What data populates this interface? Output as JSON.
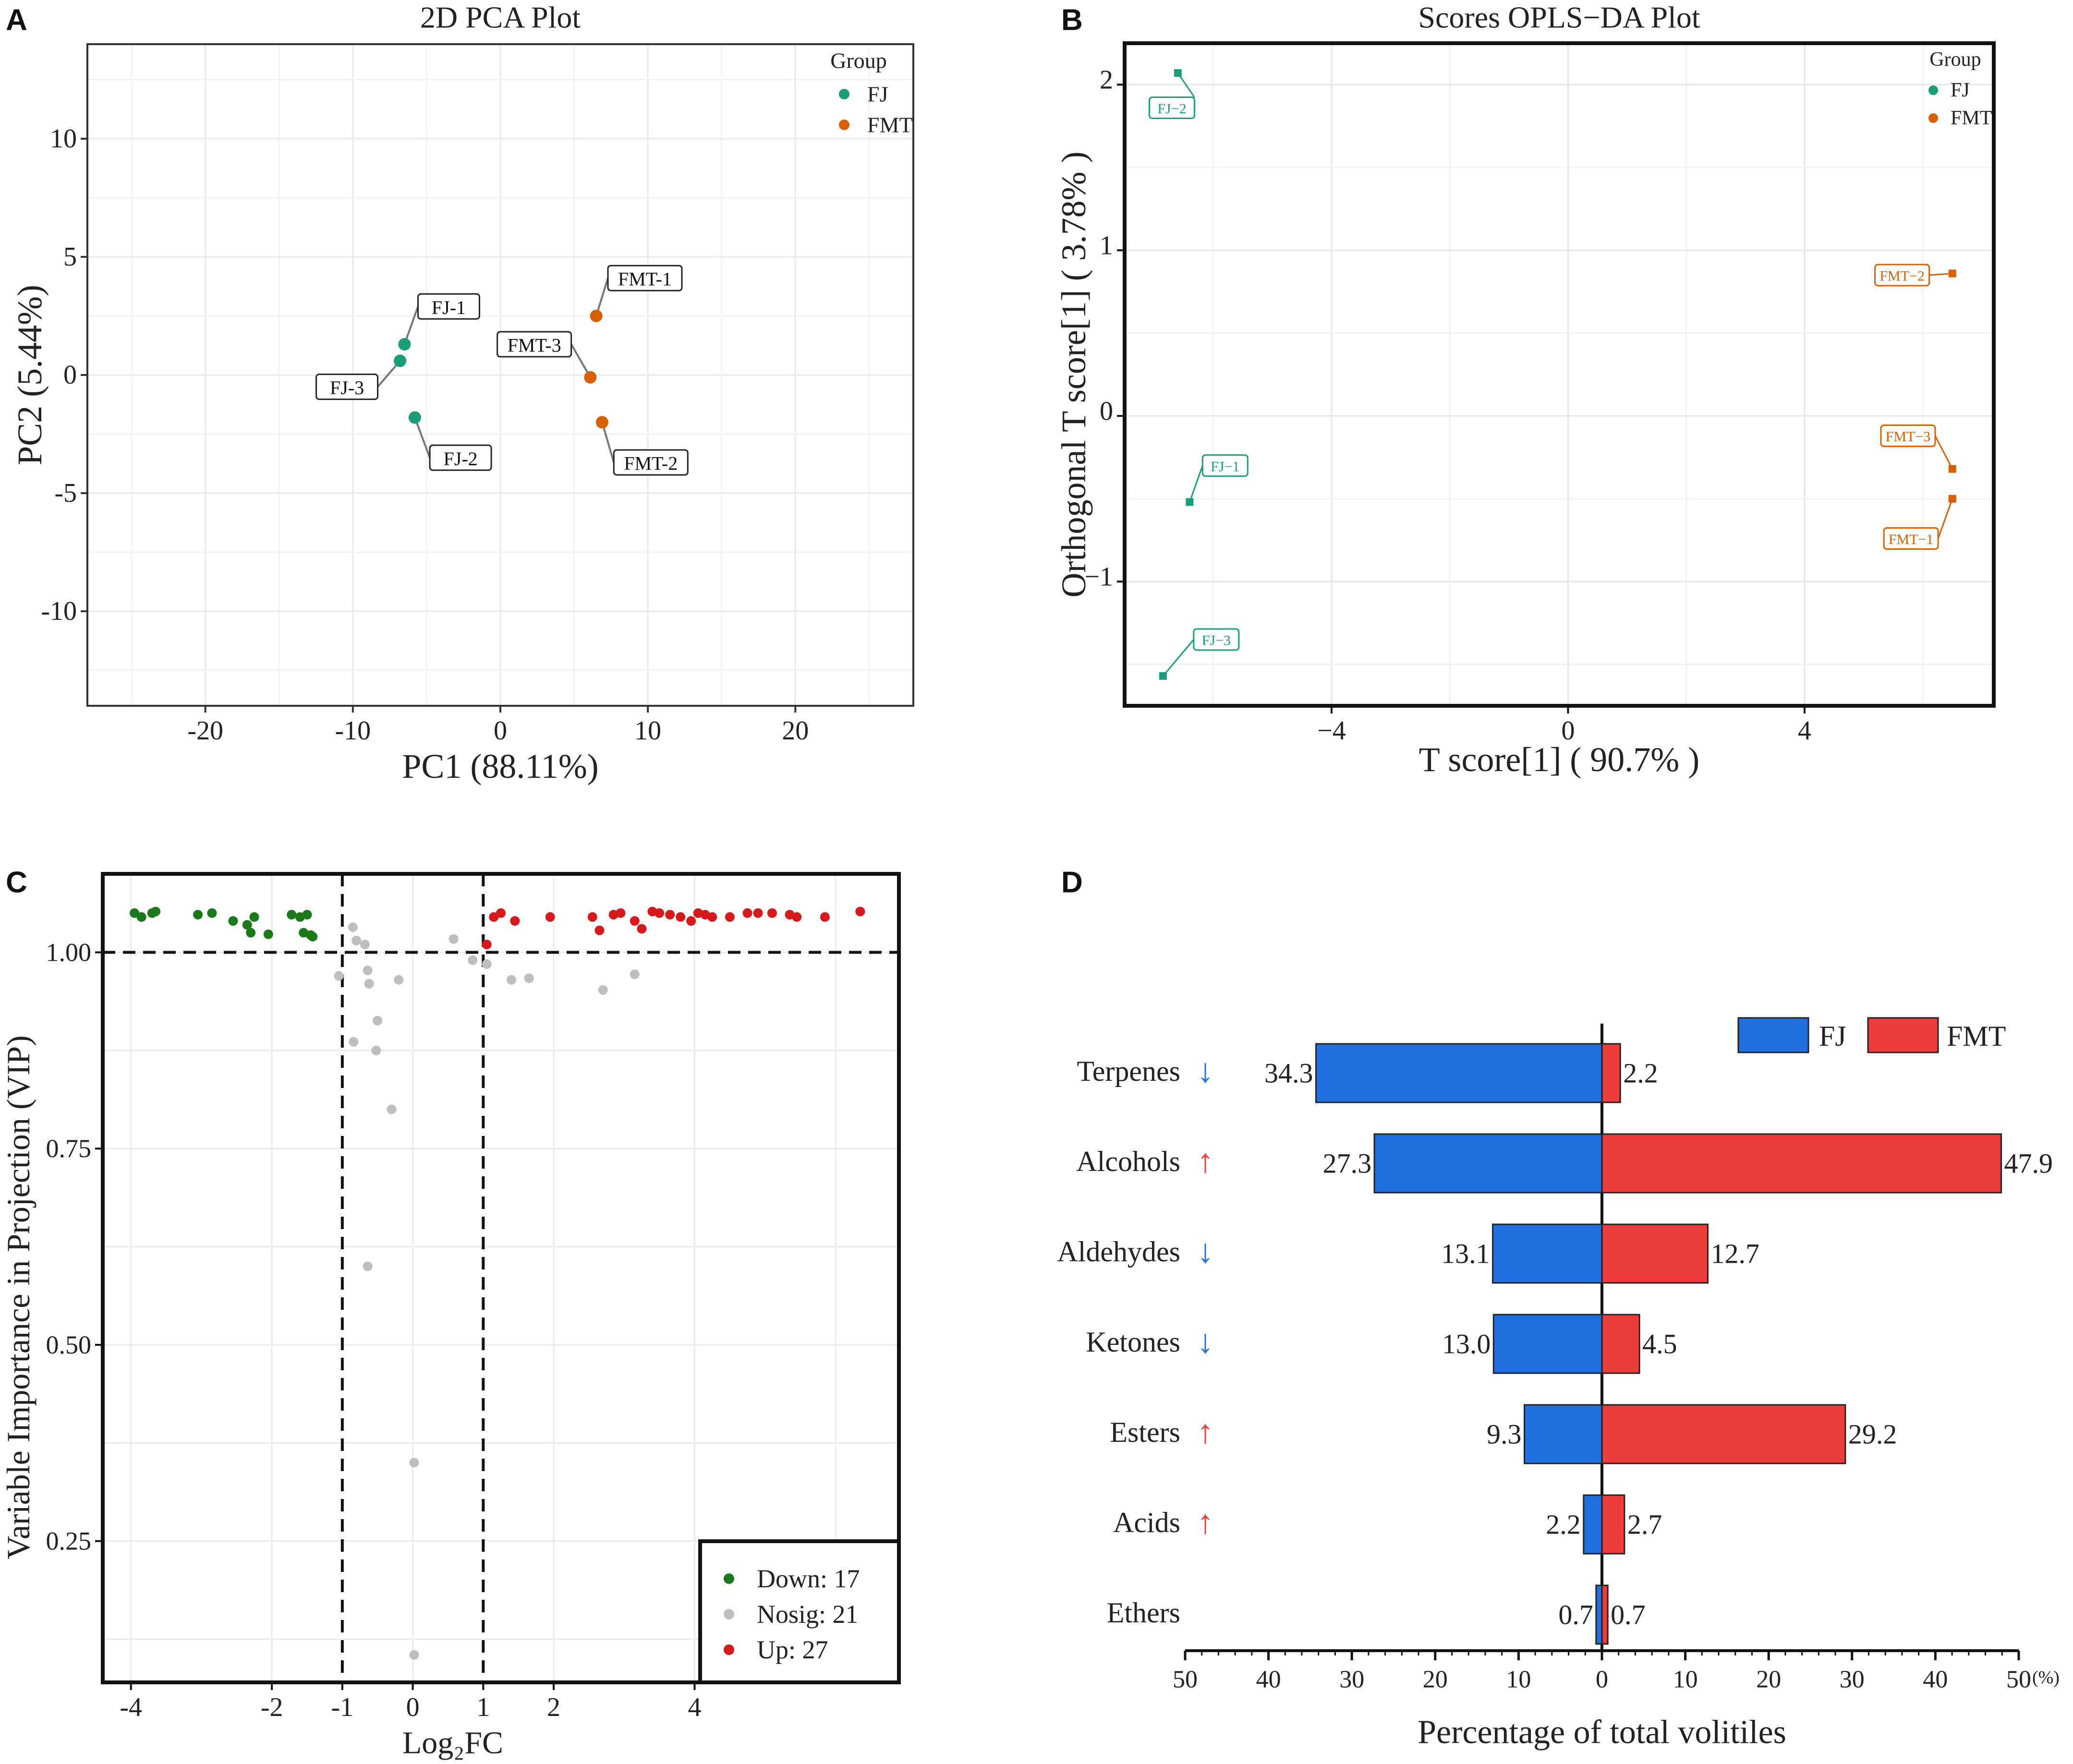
{
  "colors": {
    "fj": "#1a9e77",
    "fmt": "#d95f02",
    "down": "#1a7a1a",
    "nosig": "#bebebe",
    "up": "#d7191c",
    "bar_fj": "#1f6fe0",
    "bar_fmt": "#ee3b3b",
    "arrow_down": "#1f6fe0",
    "arrow_up": "#ee3b3b"
  },
  "chart_data": [
    {
      "id": "A",
      "panel_letter": "A",
      "type": "scatter",
      "title": "2D PCA Plot",
      "xlabel": "PC1 (88.11%)",
      "ylabel": "PC2 (5.44%)",
      "xlim": [
        -28,
        28
      ],
      "ylim": [
        -14,
        14
      ],
      "xticks": [
        -20,
        -10,
        0,
        10,
        20
      ],
      "xtick_labels": [
        "-20",
        "-10",
        "0",
        "10",
        "20"
      ],
      "yticks": [
        10,
        5,
        0,
        -5,
        -10
      ],
      "ytick_labels": [
        "10",
        "5",
        "0",
        "-5",
        "-10"
      ],
      "legend": {
        "title": "Group",
        "position": "top-right",
        "items": [
          {
            "label": "FJ",
            "group": "FJ"
          },
          {
            "label": "FMT",
            "group": "FMT"
          }
        ]
      },
      "points": [
        {
          "label": "FJ-1",
          "group": "FJ",
          "x": -6.5,
          "y": 1.3,
          "lx": -3.5,
          "ly": 2.9
        },
        {
          "label": "FJ-2",
          "group": "FJ",
          "x": -5.8,
          "y": -1.8,
          "lx": -2.7,
          "ly": -3.5
        },
        {
          "label": "FJ-3",
          "group": "FJ",
          "x": -6.8,
          "y": 0.6,
          "lx": -10.4,
          "ly": -0.5
        },
        {
          "label": "FMT-1",
          "group": "FMT",
          "x": 6.5,
          "y": 2.5,
          "lx": 9.8,
          "ly": 4.1
        },
        {
          "label": "FMT-2",
          "group": "FMT",
          "x": 6.9,
          "y": -2.0,
          "lx": 10.2,
          "ly": -3.7
        },
        {
          "label": "FMT-3",
          "group": "FMT",
          "x": 6.1,
          "y": -0.1,
          "lx": 2.3,
          "ly": 1.3
        }
      ]
    },
    {
      "id": "B",
      "panel_letter": "B",
      "type": "scatter",
      "title": "Scores OPLS−DA Plot",
      "xlabel": "T score[1] ( 90.7% )",
      "ylabel": "Orthogonal T score[1] ( 3.78% )",
      "xlim": [
        -7.5,
        7.2
      ],
      "ylim": [
        -1.75,
        2.25
      ],
      "xticks": [
        -4,
        0,
        4
      ],
      "xtick_labels": [
        "−4",
        "0",
        "4"
      ],
      "yticks": [
        2,
        1,
        0,
        -1
      ],
      "ytick_labels": [
        "2",
        "1",
        "0",
        "−1"
      ],
      "legend": {
        "title": "Group",
        "position": "top-right",
        "items": [
          {
            "label": "FJ",
            "group": "FJ"
          },
          {
            "label": "FMT",
            "group": "FMT"
          }
        ]
      },
      "points": [
        {
          "label": "FJ−1",
          "group": "FJ",
          "x": -6.4,
          "y": -0.52,
          "lx": -5.8,
          "ly": -0.3
        },
        {
          "label": "FJ−2",
          "group": "FJ",
          "x": -6.6,
          "y": 2.07,
          "lx": -6.7,
          "ly": 1.86
        },
        {
          "label": "FJ−3",
          "group": "FJ",
          "x": -6.85,
          "y": -1.57,
          "lx": -5.95,
          "ly": -1.35
        },
        {
          "label": "FMT−1",
          "group": "FMT",
          "x": 6.5,
          "y": -0.5,
          "lx": 5.8,
          "ly": -0.74
        },
        {
          "label": "FMT−2",
          "group": "FMT",
          "x": 6.5,
          "y": 0.86,
          "lx": 5.65,
          "ly": 0.85
        },
        {
          "label": "FMT−3",
          "group": "FMT",
          "x": 6.5,
          "y": -0.32,
          "lx": 5.75,
          "ly": -0.12
        }
      ]
    },
    {
      "id": "C",
      "panel_letter": "C",
      "type": "scatter",
      "title": "",
      "xlabel": "Log₂FC",
      "ylabel": "Variable Importance in Projection (VIP)",
      "xlim": [
        -4.4,
        6.9
      ],
      "ylim": [
        0.07,
        1.1
      ],
      "xticks": [
        -4,
        -2,
        -1,
        0,
        1,
        2,
        4
      ],
      "xtick_labels": [
        "-4",
        "-2",
        "-1",
        "0",
        "1",
        "2",
        "4"
      ],
      "yticks": [
        1.0,
        0.75,
        0.5,
        0.25
      ],
      "ytick_labels": [
        "1.00",
        "0.75",
        "0.50",
        "0.25"
      ],
      "threshold_lines": {
        "vip": 1.0,
        "log2fc": [
          -1,
          1
        ]
      },
      "legend": {
        "position": "bottom-right",
        "items": [
          {
            "label": "Down: 17",
            "group": "down"
          },
          {
            "label": "Nosig: 21",
            "group": "nosig"
          },
          {
            "label": "Up: 27",
            "group": "up"
          }
        ]
      },
      "series": [
        {
          "name": "Down",
          "group": "down",
          "points": [
            [
              -3.95,
              1.05
            ],
            [
              -3.85,
              1.045
            ],
            [
              -3.7,
              1.05
            ],
            [
              -3.65,
              1.052
            ],
            [
              -3.05,
              1.048
            ],
            [
              -2.85,
              1.05
            ],
            [
              -2.55,
              1.04
            ],
            [
              -2.35,
              1.035
            ],
            [
              -2.3,
              1.025
            ],
            [
              -2.25,
              1.045
            ],
            [
              -2.05,
              1.023
            ],
            [
              -1.72,
              1.048
            ],
            [
              -1.6,
              1.045
            ],
            [
              -1.55,
              1.025
            ],
            [
              -1.5,
              1.048
            ],
            [
              -1.45,
              1.022
            ],
            [
              -1.42,
              1.02
            ]
          ]
        },
        {
          "name": "Nosig",
          "group": "nosig",
          "points": [
            [
              -1.05,
              0.97
            ],
            [
              -0.85,
              1.032
            ],
            [
              -0.8,
              1.015
            ],
            [
              -0.68,
              1.01
            ],
            [
              -0.64,
              0.977
            ],
            [
              -0.62,
              0.96
            ],
            [
              -0.52,
              0.875
            ],
            [
              -0.5,
              0.913
            ],
            [
              -0.84,
              0.886
            ],
            [
              -0.3,
              0.8
            ],
            [
              -0.2,
              0.965
            ],
            [
              -0.64,
              0.6
            ],
            [
              0.02,
              0.35
            ],
            [
              0.02,
              0.105
            ],
            [
              0.58,
              1.017
            ],
            [
              0.85,
              0.99
            ],
            [
              1.05,
              0.985
            ],
            [
              1.4,
              0.965
            ],
            [
              1.65,
              0.967
            ],
            [
              2.7,
              0.952
            ],
            [
              3.15,
              0.972
            ]
          ]
        },
        {
          "name": "Up",
          "group": "up",
          "points": [
            [
              1.05,
              1.01
            ],
            [
              1.15,
              1.045
            ],
            [
              1.25,
              1.05
            ],
            [
              1.45,
              1.04
            ],
            [
              1.95,
              1.045
            ],
            [
              2.55,
              1.045
            ],
            [
              2.65,
              1.028
            ],
            [
              2.85,
              1.048
            ],
            [
              2.95,
              1.05
            ],
            [
              3.15,
              1.04
            ],
            [
              3.25,
              1.03
            ],
            [
              3.4,
              1.052
            ],
            [
              3.5,
              1.05
            ],
            [
              3.65,
              1.048
            ],
            [
              3.8,
              1.045
            ],
            [
              3.95,
              1.04
            ],
            [
              4.05,
              1.05
            ],
            [
              4.15,
              1.048
            ],
            [
              4.25,
              1.045
            ],
            [
              4.5,
              1.045
            ],
            [
              4.75,
              1.05
            ],
            [
              4.9,
              1.05
            ],
            [
              5.1,
              1.05
            ],
            [
              5.35,
              1.048
            ],
            [
              5.45,
              1.045
            ],
            [
              5.85,
              1.045
            ],
            [
              6.35,
              1.052
            ]
          ]
        }
      ]
    },
    {
      "id": "D",
      "panel_letter": "D",
      "type": "bar",
      "orientation": "horizontal-diverging",
      "title": "",
      "xlabel": "Percentage of total volitiles",
      "unit_label": "(%)",
      "xlim": [
        -50,
        50
      ],
      "xticks": [
        -50,
        -40,
        -30,
        -20,
        -10,
        0,
        10,
        20,
        30,
        40,
        50
      ],
      "xtick_labels": [
        "50",
        "40",
        "30",
        "20",
        "10",
        "0",
        "10",
        "20",
        "30",
        "40",
        "50"
      ],
      "legend": {
        "position": "top-right",
        "items": [
          {
            "label": "FJ",
            "series": "FJ"
          },
          {
            "label": "FMT",
            "series": "FMT"
          }
        ]
      },
      "categories": [
        "Terpenes",
        "Alcohols",
        "Aldehydes",
        "Ketones",
        "Esters",
        "Acids",
        "Ethers"
      ],
      "trend_arrows": [
        "↓",
        "↑",
        "↓",
        "↓",
        "↑",
        "↑",
        ""
      ],
      "trend": [
        "down",
        "up",
        "down",
        "down",
        "up",
        "up",
        "none"
      ],
      "series": [
        {
          "name": "FJ",
          "values": [
            34.3,
            27.3,
            13.1,
            13.0,
            9.3,
            2.2,
            0.7
          ],
          "value_labels": [
            "34.3",
            "27.3",
            "13.1",
            "13.0",
            "9.3",
            "2.2",
            "0.7"
          ]
        },
        {
          "name": "FMT",
          "values": [
            2.2,
            47.9,
            12.7,
            4.5,
            29.2,
            2.7,
            0.7
          ],
          "value_labels": [
            "2.2",
            "47.9",
            "12.7",
            "4.5",
            "29.2",
            "2.7",
            "0.7"
          ]
        }
      ]
    }
  ]
}
